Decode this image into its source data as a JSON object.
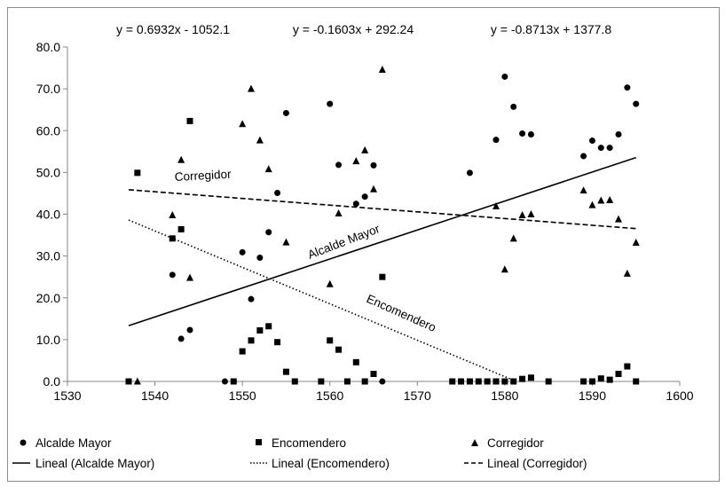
{
  "chart_data": {
    "type": "scatter",
    "title": "",
    "xlabel": "",
    "ylabel": "",
    "xlim": [
      1530,
      1600
    ],
    "ylim": [
      0,
      80
    ],
    "x_ticks": [
      "1530",
      "1540",
      "1550",
      "1560",
      "1570",
      "1580",
      "1590",
      "1600"
    ],
    "y_ticks": [
      "0.0",
      "10.0",
      "20.0",
      "30.0",
      "40.0",
      "50.0",
      "60.0",
      "70.0",
      "80.0"
    ],
    "grid": false,
    "legend_placement": "bottom",
    "equations": [
      "y = 0.6932x - 1052.1",
      "y = -0.1603x + 292.24",
      "y = -0.8713x + 1377.8"
    ],
    "series": [
      {
        "name": "Alcalde Mayor",
        "marker": "circle",
        "points": [
          [
            1537,
            0
          ],
          [
            1542,
            25.5
          ],
          [
            1543,
            10.2
          ],
          [
            1544,
            12.3
          ],
          [
            1548,
            0
          ],
          [
            1550,
            30.9
          ],
          [
            1551,
            19.7
          ],
          [
            1552,
            29.6
          ],
          [
            1553,
            35.7
          ],
          [
            1554,
            45.1
          ],
          [
            1555,
            64.2
          ],
          [
            1560,
            66.4
          ],
          [
            1561,
            51.8
          ],
          [
            1563,
            42.5
          ],
          [
            1564,
            44.2
          ],
          [
            1565,
            51.7
          ],
          [
            1566,
            0
          ],
          [
            1576,
            49.9
          ],
          [
            1579,
            57.8
          ],
          [
            1580,
            72.9
          ],
          [
            1581,
            65.7
          ],
          [
            1582,
            59.3
          ],
          [
            1583,
            59.1
          ],
          [
            1589,
            53.9
          ],
          [
            1590,
            57.6
          ],
          [
            1591,
            55.9
          ],
          [
            1592,
            55.9
          ],
          [
            1593,
            59.1
          ],
          [
            1594,
            70.3
          ],
          [
            1595,
            66.4
          ]
        ]
      },
      {
        "name": "Encomendero",
        "marker": "square",
        "points": [
          [
            1537,
            0
          ],
          [
            1538,
            49.9
          ],
          [
            1542,
            34.2
          ],
          [
            1543,
            36.4
          ],
          [
            1544,
            62.3
          ],
          [
            1549,
            0
          ],
          [
            1550,
            7.2
          ],
          [
            1551,
            9.8
          ],
          [
            1552,
            12.2
          ],
          [
            1553,
            13.2
          ],
          [
            1554,
            9.4
          ],
          [
            1555,
            2.3
          ],
          [
            1556,
            0
          ],
          [
            1559,
            0
          ],
          [
            1560,
            9.8
          ],
          [
            1561,
            7.6
          ],
          [
            1562,
            0
          ],
          [
            1563,
            4.6
          ],
          [
            1564,
            0
          ],
          [
            1565,
            1.8
          ],
          [
            1566,
            25
          ],
          [
            1574,
            0
          ],
          [
            1575,
            0
          ],
          [
            1576,
            0
          ],
          [
            1577,
            0
          ],
          [
            1578,
            0
          ],
          [
            1579,
            0
          ],
          [
            1580,
            0
          ],
          [
            1581,
            0
          ],
          [
            1582,
            0.6
          ],
          [
            1583,
            0.9
          ],
          [
            1585,
            0
          ],
          [
            1589,
            0
          ],
          [
            1590,
            0
          ],
          [
            1591,
            0.7
          ],
          [
            1592,
            0.4
          ],
          [
            1593,
            1.8
          ],
          [
            1594,
            3.6
          ],
          [
            1595,
            0
          ]
        ]
      },
      {
        "name": "Corregidor",
        "marker": "triangle",
        "points": [
          [
            1538,
            0
          ],
          [
            1542,
            39.8
          ],
          [
            1543,
            53
          ],
          [
            1544,
            24.8
          ],
          [
            1550,
            61.6
          ],
          [
            1551,
            70
          ],
          [
            1552,
            57.7
          ],
          [
            1553,
            50.8
          ],
          [
            1555,
            33.3
          ],
          [
            1560,
            23.3
          ],
          [
            1561,
            40.2
          ],
          [
            1563,
            52.7
          ],
          [
            1564,
            55.3
          ],
          [
            1565,
            46
          ],
          [
            1566,
            74.6
          ],
          [
            1579,
            41.9
          ],
          [
            1580,
            26.8
          ],
          [
            1581,
            34.2
          ],
          [
            1582,
            39.8
          ],
          [
            1583,
            40
          ],
          [
            1589,
            45.7
          ],
          [
            1590,
            42.2
          ],
          [
            1591,
            43.3
          ],
          [
            1592,
            43.4
          ],
          [
            1593,
            38.8
          ],
          [
            1594,
            25.8
          ],
          [
            1595,
            33.2
          ]
        ]
      }
    ],
    "trendlines": [
      {
        "name": "Lineal (Alcalde Mayor)",
        "label": "Alcalde Mayor",
        "style": "solid",
        "slope": 0.6932,
        "intercept": -1052.1,
        "x_range": [
          1537,
          1595
        ]
      },
      {
        "name": "Lineal (Encomendero)",
        "label": "Encomendero",
        "style": "dotted",
        "slope": -0.8713,
        "intercept": 1377.8,
        "x_range": [
          1537,
          1581
        ]
      },
      {
        "name": "Lineal (Corregidor)",
        "label": "Corregidor",
        "style": "dashed",
        "slope": -0.1603,
        "intercept": 292.24,
        "x_range": [
          1537,
          1595
        ]
      }
    ]
  }
}
